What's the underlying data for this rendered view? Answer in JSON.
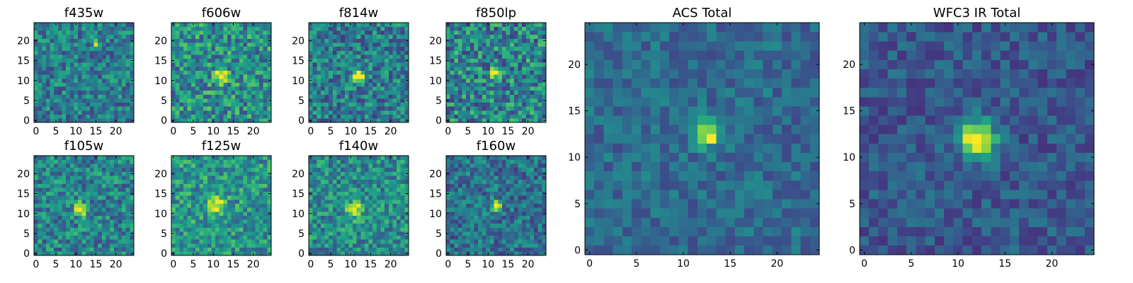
{
  "chart_data": [
    {
      "type": "heatmap",
      "title": "f435w",
      "colormap": "viridis",
      "xlim": [
        0,
        24
      ],
      "ylim": [
        0,
        24
      ],
      "xticks": [
        "0",
        "5",
        "10",
        "15",
        "20"
      ],
      "yticks": [
        "0",
        "5",
        "10",
        "15",
        "20"
      ],
      "source": {
        "center": [
          15,
          19
        ],
        "sigma": 0.6,
        "peak": 0.55,
        "noise": 0.36,
        "base": 0.42,
        "seed": 11
      }
    },
    {
      "type": "heatmap",
      "title": "f606w",
      "colormap": "viridis",
      "xlim": [
        0,
        24
      ],
      "ylim": [
        0,
        24
      ],
      "xticks": [
        "0",
        "5",
        "10",
        "15",
        "20"
      ],
      "yticks": [
        "0",
        "5",
        "10",
        "15",
        "20"
      ],
      "source": {
        "center": [
          12,
          11
        ],
        "sigma": 1.1,
        "peak": 0.75,
        "noise": 0.42,
        "base": 0.5,
        "seed": 23
      }
    },
    {
      "type": "heatmap",
      "title": "f814w",
      "colormap": "viridis",
      "xlim": [
        0,
        24
      ],
      "ylim": [
        0,
        24
      ],
      "xticks": [
        "0",
        "5",
        "10",
        "15",
        "20"
      ],
      "yticks": [
        "0",
        "5",
        "10",
        "15",
        "20"
      ],
      "source": {
        "center": [
          12,
          11
        ],
        "sigma": 1.0,
        "peak": 0.85,
        "noise": 0.4,
        "base": 0.42,
        "seed": 37
      }
    },
    {
      "type": "heatmap",
      "title": "f850lp",
      "colormap": "viridis",
      "xlim": [
        0,
        24
      ],
      "ylim": [
        0,
        24
      ],
      "xticks": [
        "0",
        "5",
        "10",
        "15",
        "20"
      ],
      "yticks": [
        "0",
        "5",
        "10",
        "15",
        "20"
      ],
      "source": {
        "center": [
          12,
          12
        ],
        "sigma": 0.9,
        "peak": 0.6,
        "noise": 0.46,
        "base": 0.45,
        "seed": 41
      }
    },
    {
      "type": "heatmap",
      "title": "ACS Total",
      "colormap": "viridis",
      "xlim": [
        0,
        24
      ],
      "ylim": [
        0,
        24
      ],
      "xticks": [
        "0",
        "5",
        "10",
        "15",
        "20"
      ],
      "yticks": [
        "0",
        "5",
        "10",
        "15",
        "20"
      ],
      "source": {
        "center": [
          12.5,
          12.5
        ],
        "sigma": 0.9,
        "peak": 0.72,
        "noise": 0.22,
        "base": 0.35,
        "seed": 53
      }
    },
    {
      "type": "heatmap",
      "title": "WFC3 IR Total",
      "colormap": "viridis",
      "xlim": [
        0,
        24
      ],
      "ylim": [
        0,
        24
      ],
      "xticks": [
        "0",
        "5",
        "10",
        "15",
        "20"
      ],
      "yticks": [
        "0",
        "5",
        "10",
        "15",
        "20"
      ],
      "source": {
        "center": [
          12,
          12
        ],
        "sigma": 1.4,
        "peak": 0.75,
        "noise": 0.22,
        "base": 0.28,
        "seed": 67
      }
    },
    {
      "type": "heatmap",
      "title": "f105w",
      "colormap": "viridis",
      "xlim": [
        0,
        24
      ],
      "ylim": [
        0,
        24
      ],
      "xticks": [
        "0",
        "5",
        "10",
        "15",
        "20"
      ],
      "yticks": [
        "0",
        "5",
        "10",
        "15",
        "20"
      ],
      "source": {
        "center": [
          11,
          11
        ],
        "sigma": 1.1,
        "peak": 0.6,
        "noise": 0.38,
        "base": 0.45,
        "seed": 71
      }
    },
    {
      "type": "heatmap",
      "title": "f125w",
      "colormap": "viridis",
      "xlim": [
        0,
        24
      ],
      "ylim": [
        0,
        24
      ],
      "xticks": [
        "0",
        "5",
        "10",
        "15",
        "20"
      ],
      "yticks": [
        "0",
        "5",
        "10",
        "15",
        "20"
      ],
      "source": {
        "center": [
          11,
          12
        ],
        "sigma": 1.6,
        "peak": 0.5,
        "noise": 0.36,
        "base": 0.52,
        "seed": 83
      }
    },
    {
      "type": "heatmap",
      "title": "f140w",
      "colormap": "viridis",
      "xlim": [
        0,
        24
      ],
      "ylim": [
        0,
        24
      ],
      "xticks": [
        "0",
        "5",
        "10",
        "15",
        "20"
      ],
      "yticks": [
        "0",
        "5",
        "10",
        "15",
        "20"
      ],
      "source": {
        "center": [
          11,
          11
        ],
        "sigma": 1.3,
        "peak": 0.55,
        "noise": 0.36,
        "base": 0.48,
        "seed": 97
      }
    },
    {
      "type": "heatmap",
      "title": "f160w",
      "colormap": "viridis",
      "xlim": [
        0,
        24
      ],
      "ylim": [
        0,
        24
      ],
      "xticks": [
        "0",
        "5",
        "10",
        "15",
        "20"
      ],
      "yticks": [
        "0",
        "5",
        "10",
        "15",
        "20"
      ],
      "source": {
        "center": [
          12,
          12
        ],
        "sigma": 1.0,
        "peak": 0.6,
        "noise": 0.34,
        "base": 0.38,
        "seed": 101
      }
    }
  ]
}
